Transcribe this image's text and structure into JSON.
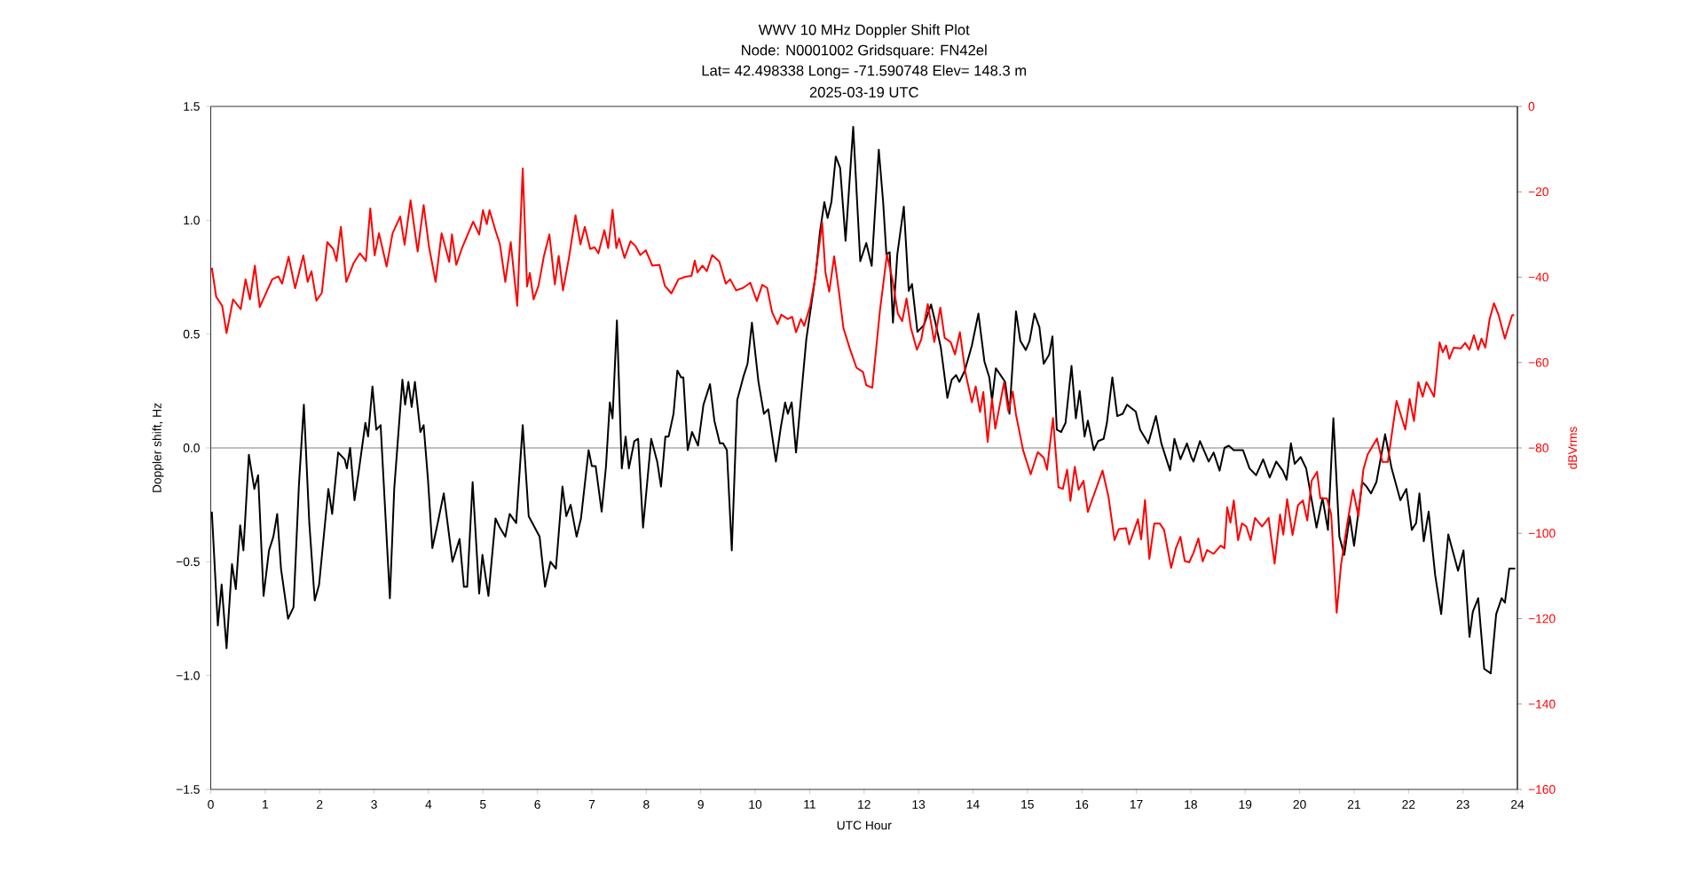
{
  "chart_data": {
    "type": "line",
    "title": "WWV 10 MHz Doppler Shift Plot",
    "subtitle": "Node:  N0001002     Gridsquare:  FN42el",
    "annotations": [
      "Lat= 42.498338    Long= -71.590748    Elev= 148.3 m",
      "2025-03-19  UTC"
    ],
    "xlabel": "UTC Hour",
    "ylabel": "Doppler shift, Hz",
    "y2label": "dBVrms",
    "xlim": [
      0,
      24
    ],
    "xticks": [
      0,
      1,
      2,
      3,
      4,
      5,
      6,
      7,
      8,
      9,
      10,
      11,
      12,
      13,
      14,
      15,
      16,
      17,
      18,
      19,
      20,
      21,
      22,
      23,
      24
    ],
    "ylim": [
      -1.5,
      1.5
    ],
    "yticks": [
      {
        "value": -1.5,
        "label": "−1.5"
      },
      {
        "value": -1.0,
        "label": "−1.0"
      },
      {
        "value": -0.5,
        "label": "−0.5"
      },
      {
        "value": 0,
        "label": "0.0"
      },
      {
        "value": 0.5,
        "label": "0.5"
      },
      {
        "value": 1.0,
        "label": "1.0"
      },
      {
        "value": 1.5,
        "label": "1.5"
      }
    ],
    "y2lim": [
      -160,
      0
    ],
    "y2ticks": [
      {
        "value": -160,
        "label": "−160"
      },
      {
        "value": -140,
        "label": "−140"
      },
      {
        "value": -120,
        "label": "−120"
      },
      {
        "value": -100,
        "label": "−100"
      },
      {
        "value": -80,
        "label": "−80"
      },
      {
        "value": -60,
        "label": "−60"
      },
      {
        "value": -40,
        "label": "−40"
      },
      {
        "value": -20,
        "label": "−20"
      },
      0
    ],
    "grid": false,
    "line_style": "solid",
    "ref_lines": [
      {
        "axis": "y",
        "value": 0,
        "color": "#808080"
      }
    ],
    "series": [
      {
        "color": "#000000",
        "x": [
          0.02,
          0.13,
          0.2,
          0.29,
          0.39,
          0.46,
          0.54,
          0.6,
          0.7,
          0.8,
          0.87,
          0.97,
          1.07,
          1.15,
          1.22,
          1.29,
          1.42,
          1.52,
          1.62,
          1.71,
          1.81,
          1.91,
          1.99,
          2.16,
          2.23,
          2.34,
          2.46,
          2.5,
          2.56,
          2.64,
          2.72,
          2.84,
          2.89,
          2.97,
          3.04,
          3.12,
          3.29,
          3.37,
          3.52,
          3.57,
          3.63,
          3.69,
          3.75,
          3.85,
          3.91,
          3.99,
          4.07,
          4.16,
          4.28,
          4.44,
          4.57,
          4.65,
          4.71,
          4.81,
          4.93,
          4.99,
          5.1,
          5.23,
          5.31,
          5.41,
          5.49,
          5.61,
          5.73,
          5.84,
          6.04,
          6.14,
          6.24,
          6.34,
          6.46,
          6.53,
          6.61,
          6.72,
          6.8,
          6.94,
          7.0,
          7.07,
          7.18,
          7.26,
          7.33,
          7.38,
          7.46,
          7.55,
          7.62,
          7.68,
          7.78,
          7.85,
          7.94,
          8.09,
          8.2,
          8.27,
          8.35,
          8.41,
          8.5,
          8.57,
          8.64,
          8.68,
          8.76,
          8.84,
          8.95,
          9.05,
          9.17,
          9.25,
          9.35,
          9.41,
          9.48,
          9.57,
          9.67,
          9.78,
          9.86,
          9.94,
          10.06,
          10.16,
          10.24,
          10.38,
          10.47,
          10.55,
          10.6,
          10.67,
          10.75,
          10.83,
          10.94,
          11.11,
          11.19,
          11.27,
          11.33,
          11.4,
          11.48,
          11.56,
          11.66,
          11.8,
          11.93,
          12.04,
          12.14,
          12.27,
          12.35,
          12.41,
          12.47,
          12.53,
          12.61,
          12.73,
          12.82,
          12.88,
          12.98,
          13.1,
          13.23,
          13.31,
          13.41,
          13.53,
          13.61,
          13.69,
          13.75,
          13.85,
          13.98,
          14.1,
          14.21,
          14.3,
          14.35,
          14.42,
          14.59,
          14.67,
          14.79,
          14.87,
          14.97,
          15.04,
          15.13,
          15.22,
          15.3,
          15.4,
          15.46,
          15.54,
          15.62,
          15.7,
          15.81,
          15.89,
          15.96,
          16.05,
          16.11,
          16.22,
          16.3,
          16.4,
          16.46,
          16.56,
          16.65,
          16.75,
          16.83,
          16.99,
          17.07,
          17.22,
          17.36,
          17.46,
          17.62,
          17.7,
          17.81,
          17.93,
          18.01,
          18.05,
          18.17,
          18.33,
          18.42,
          18.53,
          18.62,
          18.7,
          18.79,
          18.96,
          19.08,
          19.2,
          19.33,
          19.45,
          19.57,
          19.69,
          19.76,
          19.84,
          19.91,
          20.02,
          20.12,
          20.31,
          20.42,
          20.52,
          20.62,
          20.73,
          20.82,
          20.92,
          21.0,
          21.15,
          21.23,
          21.31,
          21.41,
          21.57,
          21.69,
          21.85,
          21.96,
          22.06,
          22.14,
          22.2,
          22.28,
          22.37,
          22.49,
          22.6,
          22.73,
          22.91,
          23.01,
          23.12,
          23.18,
          23.28,
          23.39,
          23.51,
          23.61,
          23.71,
          23.77,
          23.85,
          23.96
        ],
        "values": [
          -0.28,
          -0.78,
          -0.6,
          -0.88,
          -0.51,
          -0.62,
          -0.34,
          -0.45,
          -0.03,
          -0.18,
          -0.12,
          -0.65,
          -0.45,
          -0.39,
          -0.29,
          -0.53,
          -0.75,
          -0.7,
          -0.16,
          0.19,
          -0.33,
          -0.67,
          -0.6,
          -0.18,
          -0.29,
          -0.02,
          -0.05,
          -0.09,
          0.0,
          -0.23,
          -0.1,
          0.11,
          0.05,
          0.27,
          0.08,
          0.1,
          -0.66,
          -0.18,
          0.3,
          0.19,
          0.29,
          0.18,
          0.29,
          0.07,
          0.1,
          -0.14,
          -0.44,
          -0.34,
          -0.2,
          -0.5,
          -0.4,
          -0.61,
          -0.61,
          -0.15,
          -0.64,
          -0.47,
          -0.65,
          -0.31,
          -0.35,
          -0.39,
          -0.29,
          -0.33,
          0.1,
          -0.3,
          -0.39,
          -0.61,
          -0.5,
          -0.53,
          -0.17,
          -0.3,
          -0.25,
          -0.39,
          -0.31,
          -0.01,
          -0.08,
          -0.08,
          -0.28,
          -0.08,
          0.2,
          0.13,
          0.56,
          -0.09,
          0.05,
          -0.09,
          0.03,
          0.04,
          -0.35,
          0.04,
          -0.06,
          -0.17,
          0.05,
          0.05,
          0.15,
          0.34,
          0.31,
          0.31,
          -0.01,
          0.07,
          0.01,
          0.19,
          0.28,
          0.12,
          0.02,
          0.02,
          -0.01,
          -0.45,
          0.21,
          0.31,
          0.37,
          0.55,
          0.29,
          0.15,
          0.17,
          -0.06,
          0.09,
          0.2,
          0.15,
          0.2,
          -0.02,
          0.19,
          0.48,
          0.76,
          0.95,
          1.08,
          1.01,
          1.08,
          1.28,
          1.23,
          0.91,
          1.41,
          0.82,
          0.9,
          0.8,
          1.31,
          1.08,
          0.85,
          0.86,
          0.55,
          0.85,
          1.06,
          0.69,
          0.72,
          0.51,
          0.54,
          0.63,
          0.55,
          0.44,
          0.22,
          0.3,
          0.32,
          0.29,
          0.34,
          0.45,
          0.59,
          0.38,
          0.31,
          0.21,
          0.35,
          0.29,
          0.15,
          0.6,
          0.47,
          0.43,
          0.47,
          0.59,
          0.53,
          0.37,
          0.41,
          0.49,
          0.08,
          0.07,
          0.11,
          0.36,
          0.13,
          0.25,
          0.05,
          0.12,
          -0.01,
          0.03,
          0.04,
          0.11,
          0.31,
          0.14,
          0.15,
          0.19,
          0.16,
          0.08,
          0.02,
          0.14,
          0.02,
          -0.1,
          0.04,
          -0.05,
          0.02,
          -0.04,
          -0.06,
          0.03,
          -0.06,
          -0.02,
          -0.1,
          0.0,
          0.01,
          -0.01,
          -0.01,
          -0.09,
          -0.12,
          -0.05,
          -0.13,
          -0.06,
          -0.1,
          -0.14,
          0.02,
          -0.07,
          -0.04,
          -0.09,
          -0.35,
          -0.22,
          -0.36,
          0.13,
          -0.39,
          -0.47,
          -0.3,
          -0.43,
          -0.15,
          -0.17,
          -0.2,
          -0.15,
          0.06,
          -0.09,
          -0.23,
          -0.18,
          -0.36,
          -0.33,
          -0.2,
          -0.41,
          -0.28,
          -0.56,
          -0.73,
          -0.38,
          -0.54,
          -0.45,
          -0.83,
          -0.72,
          -0.66,
          -0.97,
          -0.99,
          -0.73,
          -0.66,
          -0.68,
          -0.53,
          -0.53
        ]
      },
      {
        "color": "#ff0000",
        "axis": "y2",
        "x": [
          0.02,
          0.1,
          0.21,
          0.29,
          0.41,
          0.55,
          0.64,
          0.72,
          0.81,
          0.9,
          1.03,
          1.13,
          1.24,
          1.31,
          1.43,
          1.55,
          1.7,
          1.78,
          1.85,
          1.94,
          2.04,
          2.14,
          2.25,
          2.31,
          2.39,
          2.49,
          2.62,
          2.74,
          2.85,
          2.93,
          3.01,
          3.09,
          3.23,
          3.34,
          3.48,
          3.56,
          3.67,
          3.8,
          3.91,
          4.01,
          4.13,
          4.24,
          4.38,
          4.43,
          4.51,
          4.62,
          4.82,
          4.93,
          5.0,
          5.07,
          5.12,
          5.23,
          5.31,
          5.41,
          5.51,
          5.63,
          5.73,
          5.81,
          5.86,
          5.93,
          6.02,
          6.12,
          6.22,
          6.32,
          6.39,
          6.47,
          6.58,
          6.7,
          6.79,
          6.87,
          6.97,
          7.05,
          7.12,
          7.23,
          7.3,
          7.38,
          7.45,
          7.5,
          7.6,
          7.71,
          7.8,
          7.89,
          7.99,
          8.11,
          8.24,
          8.34,
          8.46,
          8.59,
          8.72,
          8.83,
          8.89,
          8.94,
          9.03,
          9.11,
          9.21,
          9.34,
          9.46,
          9.54,
          9.65,
          9.78,
          9.91,
          10.03,
          10.13,
          10.22,
          10.31,
          10.41,
          10.48,
          10.6,
          10.68,
          10.75,
          10.84,
          10.9,
          11.01,
          11.09,
          11.14,
          11.23,
          11.29,
          11.36,
          11.45,
          11.54,
          11.62,
          11.74,
          11.86,
          11.98,
          12.04,
          12.15,
          12.29,
          12.42,
          12.52,
          12.62,
          12.7,
          12.78,
          12.86,
          12.97,
          13.05,
          13.17,
          13.29,
          13.4,
          13.48,
          13.59,
          13.67,
          13.76,
          13.86,
          13.98,
          14.05,
          14.13,
          14.19,
          14.27,
          14.35,
          14.41,
          14.57,
          14.65,
          14.73,
          14.79,
          14.92,
          15.06,
          15.19,
          15.3,
          15.36,
          15.47,
          15.57,
          15.65,
          15.73,
          15.79,
          15.87,
          15.94,
          16.03,
          16.11,
          16.19,
          16.38,
          16.49,
          16.6,
          16.68,
          16.81,
          16.87,
          17.03,
          17.09,
          17.16,
          17.24,
          17.33,
          17.43,
          17.51,
          17.64,
          17.73,
          17.81,
          17.89,
          17.97,
          18.05,
          18.14,
          18.22,
          18.3,
          18.42,
          18.55,
          18.62,
          18.67,
          18.73,
          18.79,
          18.87,
          18.94,
          19.02,
          19.1,
          19.18,
          19.31,
          19.43,
          19.54,
          19.64,
          19.7,
          19.77,
          19.87,
          19.97,
          20.06,
          20.14,
          20.22,
          20.32,
          20.38,
          20.5,
          20.58,
          20.68,
          20.76,
          20.87,
          20.98,
          21.08,
          21.17,
          21.25,
          21.42,
          21.52,
          21.62,
          21.78,
          21.94,
          22.02,
          22.1,
          22.18,
          22.26,
          22.33,
          22.47,
          22.57,
          22.63,
          22.69,
          22.75,
          22.83,
          22.96,
          23.04,
          23.12,
          23.2,
          23.28,
          23.34,
          23.41,
          23.49,
          23.57,
          23.65,
          23.77,
          23.9,
          23.94
        ],
        "values": [
          -37.8,
          -44.6,
          -46.7,
          -53.1,
          -45.2,
          -47.5,
          -40.5,
          -45.2,
          -37.3,
          -47,
          -43.3,
          -40.5,
          -39.8,
          -41.5,
          -35.2,
          -42.6,
          -34.9,
          -41.1,
          -38.6,
          -45.5,
          -43.7,
          -31.8,
          -33.4,
          -36.2,
          -28.2,
          -41.1,
          -36.8,
          -34.4,
          -36.2,
          -23.9,
          -34.9,
          -29.7,
          -37.5,
          -29.7,
          -25.8,
          -32.4,
          -22,
          -34,
          -23.1,
          -33,
          -41.1,
          -29.7,
          -36.4,
          -30,
          -37.1,
          -33,
          -27,
          -30,
          -24.3,
          -27.6,
          -24.3,
          -29.1,
          -32.2,
          -41.1,
          -31.8,
          -46.7,
          -14.5,
          -42.2,
          -39,
          -45.2,
          -42,
          -35,
          -30,
          -41.7,
          -35,
          -43.1,
          -35.4,
          -25.5,
          -32.3,
          -28.2,
          -33.4,
          -33,
          -34.4,
          -29,
          -33.2,
          -24.2,
          -33.2,
          -30.9,
          -35.5,
          -31.6,
          -32.7,
          -34.8,
          -33.7,
          -37.3,
          -37.1,
          -42,
          -43.8,
          -40.5,
          -39.9,
          -39.7,
          -36.1,
          -38.9,
          -37.3,
          -38.6,
          -34.8,
          -36.3,
          -41.5,
          -40.5,
          -43.1,
          -42.5,
          -41.3,
          -45.6,
          -41.8,
          -42.5,
          -48.2,
          -51,
          -48.8,
          -49.8,
          -49.3,
          -52.9,
          -49.8,
          -51.4,
          -46.7,
          -41,
          -36.3,
          -27.2,
          -38.9,
          -43.4,
          -35.1,
          -43.6,
          -51.9,
          -56.8,
          -61.2,
          -62.2,
          -65.3,
          -65.9,
          -48,
          -34.7,
          -40.5,
          -48.5,
          -50.3,
          -45,
          -51.9,
          -57,
          -54.6,
          -46.3,
          -55.2,
          -47.1,
          -54.2,
          -55.2,
          -58.1,
          -52.9,
          -62.3,
          -69.3,
          -65.6,
          -71.6,
          -66.9,
          -78.6,
          -68.5,
          -75.5,
          -64.7,
          -71.4,
          -66.8,
          -72.2,
          -80.5,
          -86.2,
          -81,
          -82.3,
          -85.1,
          -73,
          -89.2,
          -89.6,
          -85.1,
          -92.4,
          -84.4,
          -89.8,
          -87.7,
          -95,
          -92.1,
          -85.3,
          -91.5,
          -101.6,
          -99,
          -98.8,
          -102.6,
          -96.7,
          -101.4,
          -92.2,
          -106,
          -97.7,
          -97.7,
          -99.2,
          -108.1,
          -103.4,
          -100.8,
          -106.5,
          -106.8,
          -104.6,
          -101.2,
          -106.6,
          -103.9,
          -104.8,
          -102.9,
          -103.5,
          -93.9,
          -97.5,
          -92.3,
          -101.6,
          -97.7,
          -98.4,
          -101.6,
          -96.4,
          -98.4,
          -96.4,
          -107.1,
          -95.6,
          -100.3,
          -92,
          -100.4,
          -93.4,
          -92.3,
          -97,
          -87.7,
          -85.6,
          -91.8,
          -91.8,
          -95.6,
          -118.6,
          -107.4,
          -98.1,
          -89.8,
          -96,
          -85.1,
          -81.5,
          -77.8,
          -83.3,
          -83.3,
          -69,
          -75.7,
          -68.5,
          -73.7,
          -64.6,
          -68,
          -64.6,
          -68,
          -55.3,
          -57.6,
          -56,
          -59.1,
          -56.5,
          -56.7,
          -55.4,
          -57,
          -53.6,
          -57,
          -54.4,
          -56.5,
          -49.8,
          -46.1,
          -48.7,
          -54.4,
          -49,
          -48.8
        ]
      }
    ]
  }
}
